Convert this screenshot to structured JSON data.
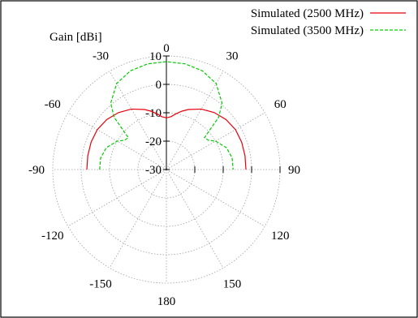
{
  "chart_data": {
    "type": "line",
    "projection": "polar",
    "title": "",
    "radial_axis_label": "Gain [dBi]",
    "radial_range": [
      -30,
      10
    ],
    "radial_ticks": [
      "10",
      "0",
      "-10",
      "-20",
      "-30"
    ],
    "angle_ticks": [
      "0",
      "30",
      "60",
      "90",
      "120",
      "150",
      "180",
      "-150",
      "-120",
      "-90",
      "-60",
      "-30"
    ],
    "angle_direction": "clockwise from top",
    "grid": true,
    "legend_position": "top-right",
    "series": [
      {
        "name": "Simulated (2500 MHz)",
        "color": "#e8000b",
        "dash": "solid",
        "angles": [
          -90,
          -80,
          -70,
          -60,
          -50,
          -40,
          -30,
          -20,
          -15,
          -10,
          -5,
          0,
          5,
          10,
          15,
          20,
          30,
          40,
          50,
          60,
          70,
          80,
          90
        ],
        "gain_dbi": [
          -2.0,
          -1.9,
          -1.8,
          -1.9,
          -2.6,
          -3.8,
          -5.4,
          -7.5,
          -8.7,
          -10.0,
          -11.3,
          -11.8,
          -11.3,
          -10.0,
          -8.7,
          -7.5,
          -5.4,
          -3.8,
          -2.6,
          -1.9,
          -1.8,
          -1.9,
          -2.0
        ]
      },
      {
        "name": "Simulated (3500 MHz)",
        "color": "#00cc00",
        "dash": "dashed",
        "angles": [
          -90,
          -80,
          -70,
          -60,
          -55,
          -50,
          -45,
          -40,
          -30,
          -20,
          -10,
          0,
          10,
          20,
          30,
          40,
          45,
          50,
          55,
          60,
          70,
          80,
          90
        ],
        "gain_dbi": [
          -6.5,
          -6.5,
          -7.5,
          -10.0,
          -12.0,
          -12.5,
          -4.0,
          0.5,
          5.0,
          7.0,
          7.8,
          8.0,
          7.8,
          7.0,
          5.0,
          0.5,
          -4.0,
          -12.5,
          -12.0,
          -10.0,
          -7.5,
          -6.5,
          -6.5
        ]
      }
    ]
  }
}
